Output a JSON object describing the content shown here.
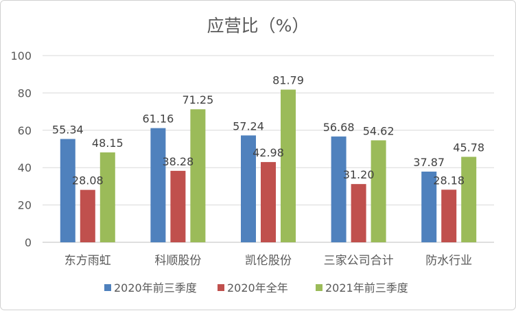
{
  "chart_data": {
    "type": "bar",
    "title": "应营比（%）",
    "categories": [
      "东方雨虹",
      "科顺股份",
      "凯伦股份",
      "三家公司合计",
      "防水行业"
    ],
    "series": [
      {
        "name": "2020年前三季度",
        "color": "#4F81BD",
        "values": [
          55.34,
          61.16,
          57.24,
          56.68,
          37.87
        ]
      },
      {
        "name": "2020年全年",
        "color": "#C0504D",
        "values": [
          28.08,
          38.28,
          42.98,
          31.2,
          28.18
        ]
      },
      {
        "name": "2021年前三季度",
        "color": "#9BBB59",
        "values": [
          48.15,
          71.25,
          81.79,
          54.62,
          45.78
        ]
      }
    ],
    "ylim": [
      0,
      100
    ],
    "yticks": [
      0,
      20,
      40,
      60,
      80,
      100
    ],
    "grid": true,
    "legend": "bottom",
    "xlabel": "",
    "ylabel": ""
  }
}
